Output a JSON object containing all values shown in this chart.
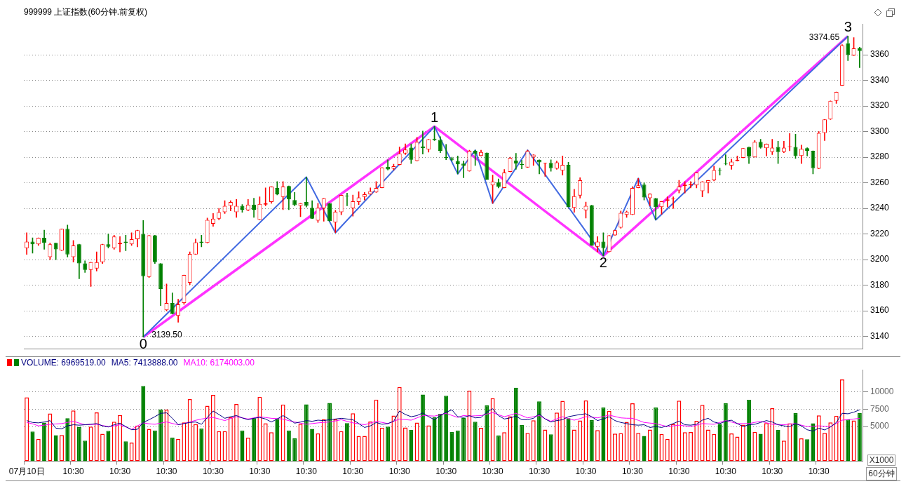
{
  "chart_data": [
    {
      "type": "candlestick",
      "title": "999999 上证指数(60分钟.前复权)",
      "categories": [
        null,
        null,
        null,
        null,
        null,
        null,
        null,
        null,
        null,
        null,
        null,
        null,
        null,
        null,
        null,
        null,
        null,
        null,
        null,
        null,
        null,
        null,
        null,
        null,
        null,
        null,
        null,
        null,
        null,
        null,
        null,
        null,
        null,
        null,
        null,
        null,
        null,
        null,
        null,
        null,
        null,
        null,
        null,
        null,
        null,
        null,
        null,
        null,
        null,
        null,
        null,
        null,
        null,
        null,
        null,
        null,
        null,
        null,
        null,
        null,
        null,
        null,
        null,
        null,
        null,
        null,
        null,
        null,
        null,
        null,
        null,
        null,
        null,
        null,
        null,
        null,
        null,
        null,
        null,
        null,
        null,
        null,
        null,
        null,
        null,
        null,
        null,
        null,
        null,
        null,
        null,
        null,
        null,
        null,
        null,
        null,
        null,
        null,
        null,
        null,
        null,
        null,
        null,
        null,
        null,
        null,
        null,
        null,
        null,
        null,
        null,
        null,
        null,
        null,
        null,
        null,
        null,
        null,
        null,
        null,
        null,
        null,
        null,
        null,
        null,
        null,
        null,
        null,
        null,
        null,
        null,
        null,
        null,
        null,
        null,
        null,
        null,
        null,
        null,
        null,
        null,
        null,
        null,
        null
      ],
      "ohlc": [
        [
          3209,
          3221,
          3204,
          3214
        ],
        [
          3214,
          3217,
          3205,
          3212
        ],
        [
          3212,
          3217,
          3211,
          3217
        ],
        [
          3217,
          3223,
          3208,
          3213
        ],
        [
          3202,
          3213,
          3200,
          3212
        ],
        [
          3213,
          3213,
          3200,
          3208
        ],
        [
          3207,
          3224,
          3207,
          3224
        ],
        [
          3224,
          3227,
          3202,
          3204
        ],
        [
          3202,
          3215,
          3198,
          3211
        ],
        [
          3212,
          3212,
          3185,
          3197
        ],
        [
          3197,
          3199,
          3190,
          3192
        ],
        [
          3192,
          3198,
          3179,
          3198
        ],
        [
          3193,
          3206,
          3191,
          3198
        ],
        [
          3198,
          3212,
          3197,
          3212
        ],
        [
          3212,
          3220,
          3209,
          3210
        ],
        [
          3209,
          3219,
          3208,
          3218
        ],
        [
          3212,
          3218,
          3206,
          3213
        ],
        [
          3214,
          3219,
          3207,
          3213
        ],
        [
          3212,
          3221,
          3211,
          3216
        ],
        [
          3216,
          3223,
          3210,
          3223
        ],
        [
          3220,
          3230.5,
          3139.5,
          3187
        ],
        [
          3186.5,
          3219,
          3186,
          3219
        ],
        [
          3219,
          3219,
          3197,
          3198
        ],
        [
          3197,
          3197,
          3164,
          3177
        ],
        [
          3160.5,
          3181,
          3160,
          3166
        ],
        [
          3166,
          3174,
          3157.5,
          3157.5
        ],
        [
          3156,
          3169,
          3151,
          3165
        ],
        [
          3166,
          3188,
          3165,
          3188
        ],
        [
          3182,
          3206,
          3180.5,
          3204.5
        ],
        [
          3204,
          3216,
          3204,
          3213.5
        ],
        [
          3214,
          3219,
          3210,
          3213
        ],
        [
          3213,
          3232.5,
          3213,
          3231
        ],
        [
          3228,
          3236,
          3226,
          3232
        ],
        [
          3232,
          3240,
          3231,
          3237
        ],
        [
          3237,
          3246,
          3236,
          3242
        ],
        [
          3242,
          3246,
          3238,
          3245
        ],
        [
          3237,
          3247,
          3233,
          3242
        ],
        [
          3242,
          3243,
          3237,
          3239
        ],
        [
          3238.5,
          3247,
          3238,
          3243
        ],
        [
          3243,
          3248,
          3233,
          3239
        ],
        [
          3231,
          3249,
          3231,
          3243.5
        ],
        [
          3243,
          3256,
          3242,
          3244
        ],
        [
          3245,
          3257,
          3244,
          3257
        ],
        [
          3256,
          3261,
          3250.5,
          3251
        ],
        [
          3249,
          3261,
          3239,
          3257
        ],
        [
          3257.5,
          3257.5,
          3239,
          3247
        ],
        [
          3246.5,
          3252.5,
          3242,
          3242.5
        ],
        [
          3242,
          3244,
          3233.5,
          3244
        ],
        [
          3245,
          3264.5,
          3241,
          3242
        ],
        [
          3240.5,
          3246,
          3232,
          3232
        ],
        [
          3230.5,
          3244,
          3229,
          3240.5
        ],
        [
          3240,
          3248,
          3230,
          3248
        ],
        [
          3244,
          3244,
          3230,
          3230
        ],
        [
          3229,
          3238.5,
          3221,
          3237.5
        ],
        [
          3237,
          3250.5,
          3235,
          3250.5
        ],
        [
          3250,
          3252,
          3242,
          3249.5
        ],
        [
          3240,
          3250.5,
          3234,
          3245.5
        ],
        [
          3245,
          3253,
          3243,
          3248.5
        ],
        [
          3249,
          3252.5,
          3246.5,
          3251
        ],
        [
          3251,
          3256,
          3251,
          3253.5
        ],
        [
          3252.5,
          3261,
          3252.5,
          3256
        ],
        [
          3256,
          3272,
          3256,
          3272
        ],
        [
          3272.5,
          3278,
          3270,
          3270.5
        ],
        [
          3271,
          3274.5,
          3270,
          3273
        ],
        [
          3274,
          3288,
          3274,
          3283
        ],
        [
          3283,
          3290.5,
          3282,
          3286
        ],
        [
          3287.5,
          3290.5,
          3275,
          3278
        ],
        [
          3277,
          3295.5,
          3277,
          3292
        ],
        [
          3288.5,
          3300.5,
          3282.5,
          3287
        ],
        [
          3286,
          3294,
          3284,
          3294
        ],
        [
          3294.5,
          3304,
          3293,
          3293.5
        ],
        [
          3293.5,
          3296,
          3283.5,
          3285
        ],
        [
          3280,
          3290,
          3278,
          3279.5
        ],
        [
          3279,
          3280,
          3277,
          3278
        ],
        [
          3277,
          3281,
          3267,
          3274.5
        ],
        [
          3275,
          3277,
          3264,
          3273.5
        ],
        [
          3269,
          3285.5,
          3269,
          3285
        ],
        [
          3285,
          3285.5,
          3273.5,
          3282.5
        ],
        [
          3281,
          3285.5,
          3281,
          3284
        ],
        [
          3283.5,
          3283.5,
          3262.5,
          3262.5
        ],
        [
          3258,
          3266,
          3244,
          3261
        ],
        [
          3260.5,
          3263,
          3256,
          3257
        ],
        [
          3256,
          3270.5,
          3256,
          3268
        ],
        [
          3268.5,
          3280,
          3268.5,
          3279.5
        ],
        [
          3277.5,
          3283,
          3270.5,
          3275
        ],
        [
          3274.5,
          3277.5,
          3271,
          3274
        ],
        [
          3272,
          3285.5,
          3272,
          3285
        ],
        [
          3280,
          3282,
          3273.5,
          3282
        ],
        [
          3278,
          3278,
          3267,
          3276
        ],
        [
          3275,
          3275.5,
          3265,
          3275.5
        ],
        [
          3275.5,
          3278,
          3269,
          3271.5
        ],
        [
          3271,
          3277,
          3270.5,
          3276
        ],
        [
          3269.5,
          3281,
          3266,
          3274
        ],
        [
          3274,
          3276,
          3241,
          3241
        ],
        [
          3240.5,
          3255,
          3237,
          3249.5
        ],
        [
          3250,
          3264,
          3248,
          3262
        ],
        [
          3238.5,
          3245,
          3232.5,
          3242
        ],
        [
          3242.5,
          3242.5,
          3211,
          3211
        ],
        [
          3210,
          3218,
          3206,
          3214
        ],
        [
          3214,
          3221,
          3203,
          3209
        ],
        [
          3206,
          3219,
          3206,
          3219
        ],
        [
          3219,
          3223,
          3219,
          3223
        ],
        [
          3225,
          3238,
          3224.5,
          3236.5
        ],
        [
          3235,
          3238,
          3233,
          3237.5
        ],
        [
          3235,
          3257,
          3235,
          3256
        ],
        [
          3256,
          3263.5,
          3256,
          3258
        ],
        [
          3258.5,
          3260,
          3246.5,
          3248.5
        ],
        [
          3248,
          3251.5,
          3242,
          3251.5
        ],
        [
          3248,
          3248,
          3231,
          3241
        ],
        [
          3241,
          3245.5,
          3235.5,
          3245.5
        ],
        [
          3246,
          3249,
          3241,
          3247
        ],
        [
          3247,
          3249,
          3240,
          3247.5
        ],
        [
          3254,
          3262,
          3252,
          3257
        ],
        [
          3257.5,
          3261,
          3252,
          3258.5
        ],
        [
          3258,
          3261,
          3256,
          3259
        ],
        [
          3258,
          3268,
          3256,
          3268
        ],
        [
          3253.5,
          3261,
          3249,
          3261
        ],
        [
          3260,
          3262,
          3252,
          3262
        ],
        [
          3262,
          3273,
          3261.5,
          3270
        ],
        [
          3270,
          3271.5,
          3266,
          3269.5
        ],
        [
          3275,
          3282,
          3274,
          3274.5
        ],
        [
          3273.5,
          3278.5,
          3270.5,
          3276.5
        ],
        [
          3277,
          3281,
          3277,
          3278
        ],
        [
          3279.5,
          3287,
          3279.5,
          3287
        ],
        [
          3288,
          3288,
          3275,
          3280.5
        ],
        [
          3280,
          3293,
          3280,
          3292
        ],
        [
          3292,
          3294,
          3287,
          3287.5
        ],
        [
          3287,
          3290.5,
          3281,
          3290.5
        ],
        [
          3284,
          3294,
          3282,
          3287.5
        ],
        [
          3288,
          3292.5,
          3275,
          3284
        ],
        [
          3284,
          3292.5,
          3283.5,
          3287.5
        ],
        [
          3288,
          3298.5,
          3285,
          3288.5
        ],
        [
          3288,
          3298,
          3279,
          3281
        ],
        [
          3281,
          3289.5,
          3275,
          3286.5
        ],
        [
          3287,
          3287.5,
          3281,
          3285
        ],
        [
          3285,
          3285,
          3267,
          3271.5
        ],
        [
          3271,
          3300,
          3271,
          3299
        ],
        [
          3299,
          3309.5,
          3293,
          3309.5
        ],
        [
          3309.5,
          3324,
          3309.5,
          3324
        ],
        [
          3324,
          3331,
          3322,
          3331
        ],
        [
          3336,
          3368,
          3336,
          3367.5
        ],
        [
          3369,
          3374.65,
          3355.5,
          3360
        ],
        [
          3359.5,
          3373.5,
          3359.5,
          3365
        ],
        [
          3365.5,
          3366,
          3350,
          3363
        ]
      ],
      "colors": [
        "#ff0000",
        "#008000",
        "#ff0000",
        "#008000",
        "#ff0000",
        "#008000",
        "#ff0000",
        "#008000",
        "#ff0000",
        "#008000",
        "#008000",
        "#ff0000",
        "#ff0000",
        "#ff0000",
        "#008000",
        "#ff0000",
        "#ff0000",
        "#008000",
        "#ff0000",
        "#ff0000",
        "#008000",
        "#ff0000",
        "#008000",
        "#008000",
        "#ff0000",
        "#008000",
        "#ff0000",
        "#ff0000",
        "#ff0000",
        "#ff0000",
        "#008000",
        "#ff0000",
        "#ff0000",
        "#ff0000",
        "#ff0000",
        "#ff0000",
        "#ff0000",
        "#008000",
        "#ff0000",
        "#008000",
        "#ff0000",
        "#ff0000",
        "#ff0000",
        "#008000",
        "#ff0000",
        "#008000",
        "#008000",
        "#ff0000",
        "#008000",
        "#008000",
        "#ff0000",
        "#ff0000",
        "#008000",
        "#ff0000",
        "#ff0000",
        "#008000",
        "#ff0000",
        "#ff0000",
        "#ff0000",
        "#ff0000",
        "#ff0000",
        "#ff0000",
        "#008000",
        "#ff0000",
        "#ff0000",
        "#ff0000",
        "#008000",
        "#ff0000",
        "#008000",
        "#ff0000",
        "#008000",
        "#008000",
        "#008000",
        "#008000",
        "#008000",
        "#008000",
        "#ff0000",
        "#008000",
        "#ff0000",
        "#008000",
        "#ff0000",
        "#008000",
        "#ff0000",
        "#ff0000",
        "#008000",
        "#008000",
        "#ff0000",
        "#ff0000",
        "#008000",
        "#ff0000",
        "#008000",
        "#ff0000",
        "#ff0000",
        "#008000",
        "#ff0000",
        "#ff0000",
        "#ff0000",
        "#008000",
        "#ff0000",
        "#008000",
        "#ff0000",
        "#ff0000",
        "#ff0000",
        "#ff0000",
        "#ff0000",
        "#ff0000",
        "#008000",
        "#ff0000",
        "#008000",
        "#ff0000",
        "#ff0000",
        "#ff0000",
        "#ff0000",
        "#ff0000",
        "#ff0000",
        "#ff0000",
        "#ff0000",
        "#ff0000",
        "#ff0000",
        "#008000",
        "#008000",
        "#ff0000",
        "#ff0000",
        "#ff0000",
        "#008000",
        "#ff0000",
        "#008000",
        "#ff0000",
        "#ff0000",
        "#008000",
        "#ff0000",
        "#ff0000",
        "#008000",
        "#ff0000",
        "#008000",
        "#008000",
        "#ff0000",
        "#ff0000",
        "#ff0000",
        "#ff0000",
        "#ff0000",
        "#008000",
        "#ff0000",
        "#008000"
      ],
      "series": [
        {
          "type": "line",
          "color": "#ff33ff",
          "values": [
            null,
            null,
            null,
            null,
            null,
            null,
            null,
            null,
            null,
            null,
            null,
            null,
            null,
            null,
            null,
            null,
            null,
            null,
            null,
            null,
            3139.5,
            null,
            null,
            null,
            null,
            null,
            null,
            null,
            null,
            null,
            null,
            null,
            null,
            null,
            null,
            null,
            null,
            null,
            null,
            null,
            null,
            null,
            null,
            null,
            null,
            null,
            null,
            null,
            null,
            null,
            null,
            null,
            null,
            null,
            null,
            null,
            null,
            null,
            null,
            null,
            null,
            null,
            null,
            null,
            null,
            null,
            null,
            null,
            null,
            null,
            3304,
            null,
            null,
            null,
            null,
            null,
            null,
            null,
            null,
            null,
            null,
            null,
            null,
            null,
            null,
            null,
            null,
            null,
            null,
            null,
            null,
            null,
            null,
            null,
            null,
            null,
            null,
            null,
            null,
            3203,
            null,
            null,
            null,
            null,
            null,
            null,
            null,
            null,
            null,
            null,
            null,
            null,
            null,
            null,
            null,
            null,
            null,
            null,
            null,
            null,
            null,
            null,
            null,
            null,
            null,
            null,
            null,
            null,
            null,
            null,
            null,
            null,
            null,
            null,
            null,
            null,
            null,
            null,
            null,
            null,
            null,
            3374.65,
            null,
            null
          ]
        },
        {
          "type": "line",
          "color": "#4169e1",
          "values": [
            null,
            null,
            null,
            null,
            null,
            null,
            null,
            null,
            null,
            null,
            null,
            null,
            null,
            null,
            null,
            null,
            null,
            null,
            null,
            null,
            3139.5,
            null,
            null,
            null,
            null,
            null,
            null,
            null,
            null,
            null,
            null,
            null,
            null,
            null,
            null,
            null,
            null,
            null,
            null,
            null,
            null,
            null,
            null,
            null,
            null,
            null,
            null,
            null,
            3264.5,
            null,
            null,
            null,
            null,
            3221,
            null,
            null,
            null,
            null,
            null,
            null,
            null,
            null,
            null,
            null,
            null,
            null,
            null,
            null,
            null,
            null,
            3304,
            null,
            null,
            null,
            3267,
            null,
            null,
            3285.5,
            null,
            null,
            3244,
            null,
            null,
            null,
            null,
            null,
            3285.5,
            null,
            null,
            null,
            null,
            null,
            null,
            null,
            null,
            null,
            null,
            null,
            null,
            3203,
            null,
            null,
            null,
            null,
            null,
            3263.5,
            null,
            null,
            3231,
            null,
            null,
            null,
            null,
            null,
            null,
            null,
            null,
            null,
            null,
            null,
            null,
            null,
            null,
            null,
            null,
            null,
            null,
            null,
            null,
            null,
            null,
            null,
            null,
            null,
            null,
            null,
            null,
            null,
            null,
            null,
            null,
            3374.65,
            null,
            null
          ]
        }
      ],
      "annotations": [
        {
          "text": "0",
          "y": 3139.5
        },
        "3139.50",
        {
          "text": "1",
          "y": 3304
        },
        {
          "text": "2",
          "y": 3203
        },
        {
          "text": "3",
          "y": 3374.65
        },
        "3374.65"
      ],
      "ylim": [
        3130,
        3384
      ],
      "yticks": [
        3140,
        3160,
        3180,
        3200,
        3220,
        3240,
        3260,
        3280,
        3300,
        3320,
        3340,
        3360
      ],
      "grid": "y",
      "tick_labels": "y"
    },
    {
      "type": "bar",
      "categories": [
        "07月10日",
        null,
        null,
        null,
        null,
        null,
        null,
        null,
        "10:30",
        null,
        null,
        null,
        null,
        null,
        null,
        null,
        "10:30",
        null,
        null,
        null,
        null,
        null,
        null,
        null,
        "10:30",
        null,
        null,
        null,
        null,
        null,
        null,
        null,
        "10:30",
        null,
        null,
        null,
        null,
        null,
        null,
        null,
        "10:30",
        null,
        null,
        null,
        null,
        null,
        null,
        null,
        "10:30",
        null,
        null,
        null,
        null,
        null,
        null,
        null,
        "10:30",
        null,
        null,
        null,
        null,
        null,
        null,
        null,
        "10:30",
        null,
        null,
        null,
        null,
        null,
        null,
        null,
        "10:30",
        null,
        null,
        null,
        null,
        null,
        null,
        null,
        "10:30",
        null,
        null,
        null,
        null,
        null,
        null,
        null,
        "10:30",
        null,
        null,
        null,
        null,
        null,
        null,
        null,
        "10:30",
        null,
        null,
        null,
        null,
        null,
        null,
        null,
        "10:30",
        null,
        null,
        null,
        null,
        null,
        null,
        null,
        "10:30",
        null,
        null,
        null,
        null,
        null,
        null,
        null,
        "10:30",
        null,
        null,
        null,
        null,
        null,
        null,
        null,
        "10:30",
        null,
        null,
        null,
        null,
        null,
        null,
        null,
        "10:30",
        null,
        null,
        null,
        null,
        null,
        null,
        null
      ],
      "series": [
        {
          "name": "VOLUME: 6969519.00",
          "color": "#000080",
          "colors": [
            "#ff0000",
            "#008000",
            "#ff0000",
            "#008000",
            "#ff0000",
            "#008000",
            "#ff0000",
            "#008000",
            "#ff0000",
            "#008000",
            "#008000",
            "#ff0000",
            "#ff0000",
            "#ff0000",
            "#008000",
            "#ff0000",
            "#ff0000",
            "#008000",
            "#ff0000",
            "#ff0000",
            "#008000",
            "#ff0000",
            "#008000",
            "#008000",
            "#ff0000",
            "#008000",
            "#ff0000",
            "#ff0000",
            "#ff0000",
            "#ff0000",
            "#008000",
            "#ff0000",
            "#ff0000",
            "#ff0000",
            "#ff0000",
            "#ff0000",
            "#ff0000",
            "#008000",
            "#ff0000",
            "#008000",
            "#ff0000",
            "#ff0000",
            "#ff0000",
            "#008000",
            "#ff0000",
            "#008000",
            "#008000",
            "#ff0000",
            "#008000",
            "#008000",
            "#ff0000",
            "#ff0000",
            "#008000",
            "#ff0000",
            "#ff0000",
            "#008000",
            "#ff0000",
            "#ff0000",
            "#ff0000",
            "#ff0000",
            "#ff0000",
            "#ff0000",
            "#008000",
            "#ff0000",
            "#ff0000",
            "#ff0000",
            "#008000",
            "#ff0000",
            "#008000",
            "#ff0000",
            "#008000",
            "#008000",
            "#008000",
            "#008000",
            "#008000",
            "#008000",
            "#ff0000",
            "#008000",
            "#ff0000",
            "#008000",
            "#ff0000",
            "#008000",
            "#ff0000",
            "#ff0000",
            "#008000",
            "#008000",
            "#ff0000",
            "#ff0000",
            "#008000",
            "#ff0000",
            "#008000",
            "#ff0000",
            "#ff0000",
            "#008000",
            "#ff0000",
            "#ff0000",
            "#ff0000",
            "#008000",
            "#ff0000",
            "#008000",
            "#ff0000",
            "#ff0000",
            "#ff0000",
            "#ff0000",
            "#ff0000",
            "#ff0000",
            "#008000",
            "#ff0000",
            "#008000",
            "#ff0000",
            "#ff0000",
            "#ff0000",
            "#ff0000",
            "#ff0000",
            "#ff0000",
            "#ff0000",
            "#ff0000",
            "#ff0000",
            "#ff0000",
            "#008000",
            "#008000",
            "#ff0000",
            "#ff0000",
            "#ff0000",
            "#008000",
            "#ff0000",
            "#008000",
            "#ff0000",
            "#ff0000",
            "#008000",
            "#ff0000",
            "#ff0000",
            "#008000",
            "#ff0000",
            "#008000",
            "#008000",
            "#ff0000",
            "#ff0000",
            "#ff0000",
            "#ff0000",
            "#ff0000",
            "#008000",
            "#ff0000",
            "#008000"
          ],
          "values": [
            9210,
            4280,
            3220,
            5560,
            6880,
            3750,
            3780,
            6190,
            7300,
            4940,
            2960,
            5000,
            7040,
            3950,
            4380,
            5690,
            6650,
            2860,
            2700,
            5130,
            10860,
            4670,
            4440,
            7470,
            7440,
            3420,
            3220,
            5590,
            8950,
            5330,
            4700,
            7990,
            9570,
            4340,
            4340,
            6320,
            8260,
            4440,
            3390,
            6190,
            9280,
            5460,
            4180,
            6090,
            8160,
            4440,
            3320,
            5400,
            8190,
            4670,
            4010,
            6050,
            8390,
            6020,
            4340,
            5490,
            6910,
            3650,
            3650,
            5720,
            8880,
            4840,
            5000,
            6580,
            10690,
            4870,
            4540,
            5560,
            9610,
            5170,
            6320,
            6840,
            9440,
            4210,
            4440,
            6250,
            10170,
            5690,
            4800,
            8060,
            9080,
            3720,
            4180,
            6480,
            10590,
            5230,
            4080,
            5890,
            8620,
            4570,
            3880,
            7010,
            8690,
            6190,
            4570,
            5860,
            8750,
            5920,
            4470,
            7730,
            7270,
            3980,
            4050,
            5660,
            8360,
            4080,
            3650,
            4570,
            7730,
            3920,
            3220,
            5360,
            8720,
            4180,
            4210,
            5820,
            8130,
            4570,
            3920,
            5360,
            8360,
            4010,
            3550,
            5260,
            8850,
            4240,
            3950,
            5490,
            7630,
            4510,
            2960,
            5460,
            6940,
            3290,
            3160,
            5460,
            6610,
            4080,
            5590,
            6550,
            11780,
            6050,
            5860,
            6970
          ]
        },
        {
          "type": "line",
          "name": "MA5: 7413888.00",
          "color": "#000080",
          "values": [
            5860,
            5590,
            5530,
            5660,
            5860,
            4770,
            4670,
            5100,
            5260,
            5200,
            5260,
            5330,
            5430,
            5100,
            4940,
            5260,
            5490,
            5000,
            4540,
            4600,
            5590,
            5990,
            6420,
            6910,
            6970,
            6190,
            5260,
            5430,
            5590,
            5660,
            5330,
            6320,
            7240,
            6740,
            6190,
            6420,
            6580,
            6250,
            5990,
            6190,
            6320,
            6090,
            5660,
            6090,
            6580,
            6090,
            5490,
            5660,
            5860,
            5760,
            5920,
            5860,
            5990,
            6090,
            6190,
            6090,
            5990,
            5430,
            4870,
            5100,
            5590,
            5330,
            5430,
            5760,
            7240,
            6740,
            6420,
            6580,
            6970,
            6420,
            5990,
            6580,
            7070,
            7400,
            6420,
            6320,
            6580,
            6250,
            6320,
            7070,
            7570,
            6580,
            6090,
            6250,
            6510,
            5990,
            5990,
            6190,
            6840,
            6090,
            5660,
            5860,
            5990,
            6420,
            6580,
            6740,
            6840,
            6420,
            5860,
            6090,
            6420,
            5860,
            5590,
            5430,
            5260,
            5200,
            5260,
            4870,
            5000,
            4870,
            5100,
            5430,
            5790,
            5260,
            5200,
            5330,
            5920,
            6190,
            5660,
            5430,
            5760,
            5920,
            5430,
            5000,
            5260,
            5330,
            5590,
            5860,
            5660,
            5260,
            5100,
            5000,
            5430,
            5100,
            4540,
            4340,
            4770,
            4510,
            4940,
            5590,
            6910,
            6840,
            7070,
            7410
          ]
        },
        {
          "type": "line",
          "name": "MA10: 6174003.00",
          "color": "#ff00ff",
          "values": [
            5590,
            5400,
            5100,
            5200,
            5330,
            5380,
            5430,
            5600,
            5760,
            5500,
            5260,
            5300,
            5330,
            5150,
            5000,
            5100,
            5260,
            4940,
            4600,
            5100,
            5530,
            5400,
            5330,
            5500,
            5660,
            5450,
            5260,
            5450,
            5660,
            5900,
            6090,
            6200,
            6320,
            6100,
            5860,
            6150,
            6420,
            6250,
            6090,
            6250,
            6420,
            6300,
            6190,
            6150,
            6090,
            5850,
            5660,
            5500,
            5330,
            5430,
            5530,
            5600,
            5660,
            5800,
            5990,
            5750,
            5530,
            5400,
            5260,
            5500,
            5760,
            5600,
            5430,
            5750,
            6090,
            6000,
            5920,
            6250,
            6580,
            6550,
            6510,
            6700,
            6910,
            6600,
            6320,
            6600,
            6500,
            6550,
            6580,
            6800,
            7000,
            6700,
            6420,
            6650,
            6910,
            6580,
            6250,
            6420,
            6580,
            6150,
            5760,
            6100,
            6420,
            6150,
            5920,
            6150,
            6420,
            6350,
            6250,
            6450,
            6650,
            6450,
            6250,
            6200,
            6190,
            5900,
            5590,
            5500,
            5430,
            5200,
            5000,
            5100,
            5200,
            5100,
            5000,
            5200,
            5430,
            5380,
            5330,
            5600,
            5860,
            5650,
            5430,
            5430,
            5430,
            5600,
            5760,
            5550,
            5330,
            5300,
            5260,
            5350,
            5430,
            5200,
            5000,
            5050,
            5100,
            5050,
            5000,
            5450,
            5920,
            6000,
            6090,
            6170
          ]
        }
      ],
      "legend": "top left",
      "annotations": [
        "X1000",
        "60分钟"
      ],
      "ylim": [
        0,
        13200
      ],
      "yticks": [
        5000,
        7500,
        10000
      ],
      "grid": "y"
    }
  ]
}
